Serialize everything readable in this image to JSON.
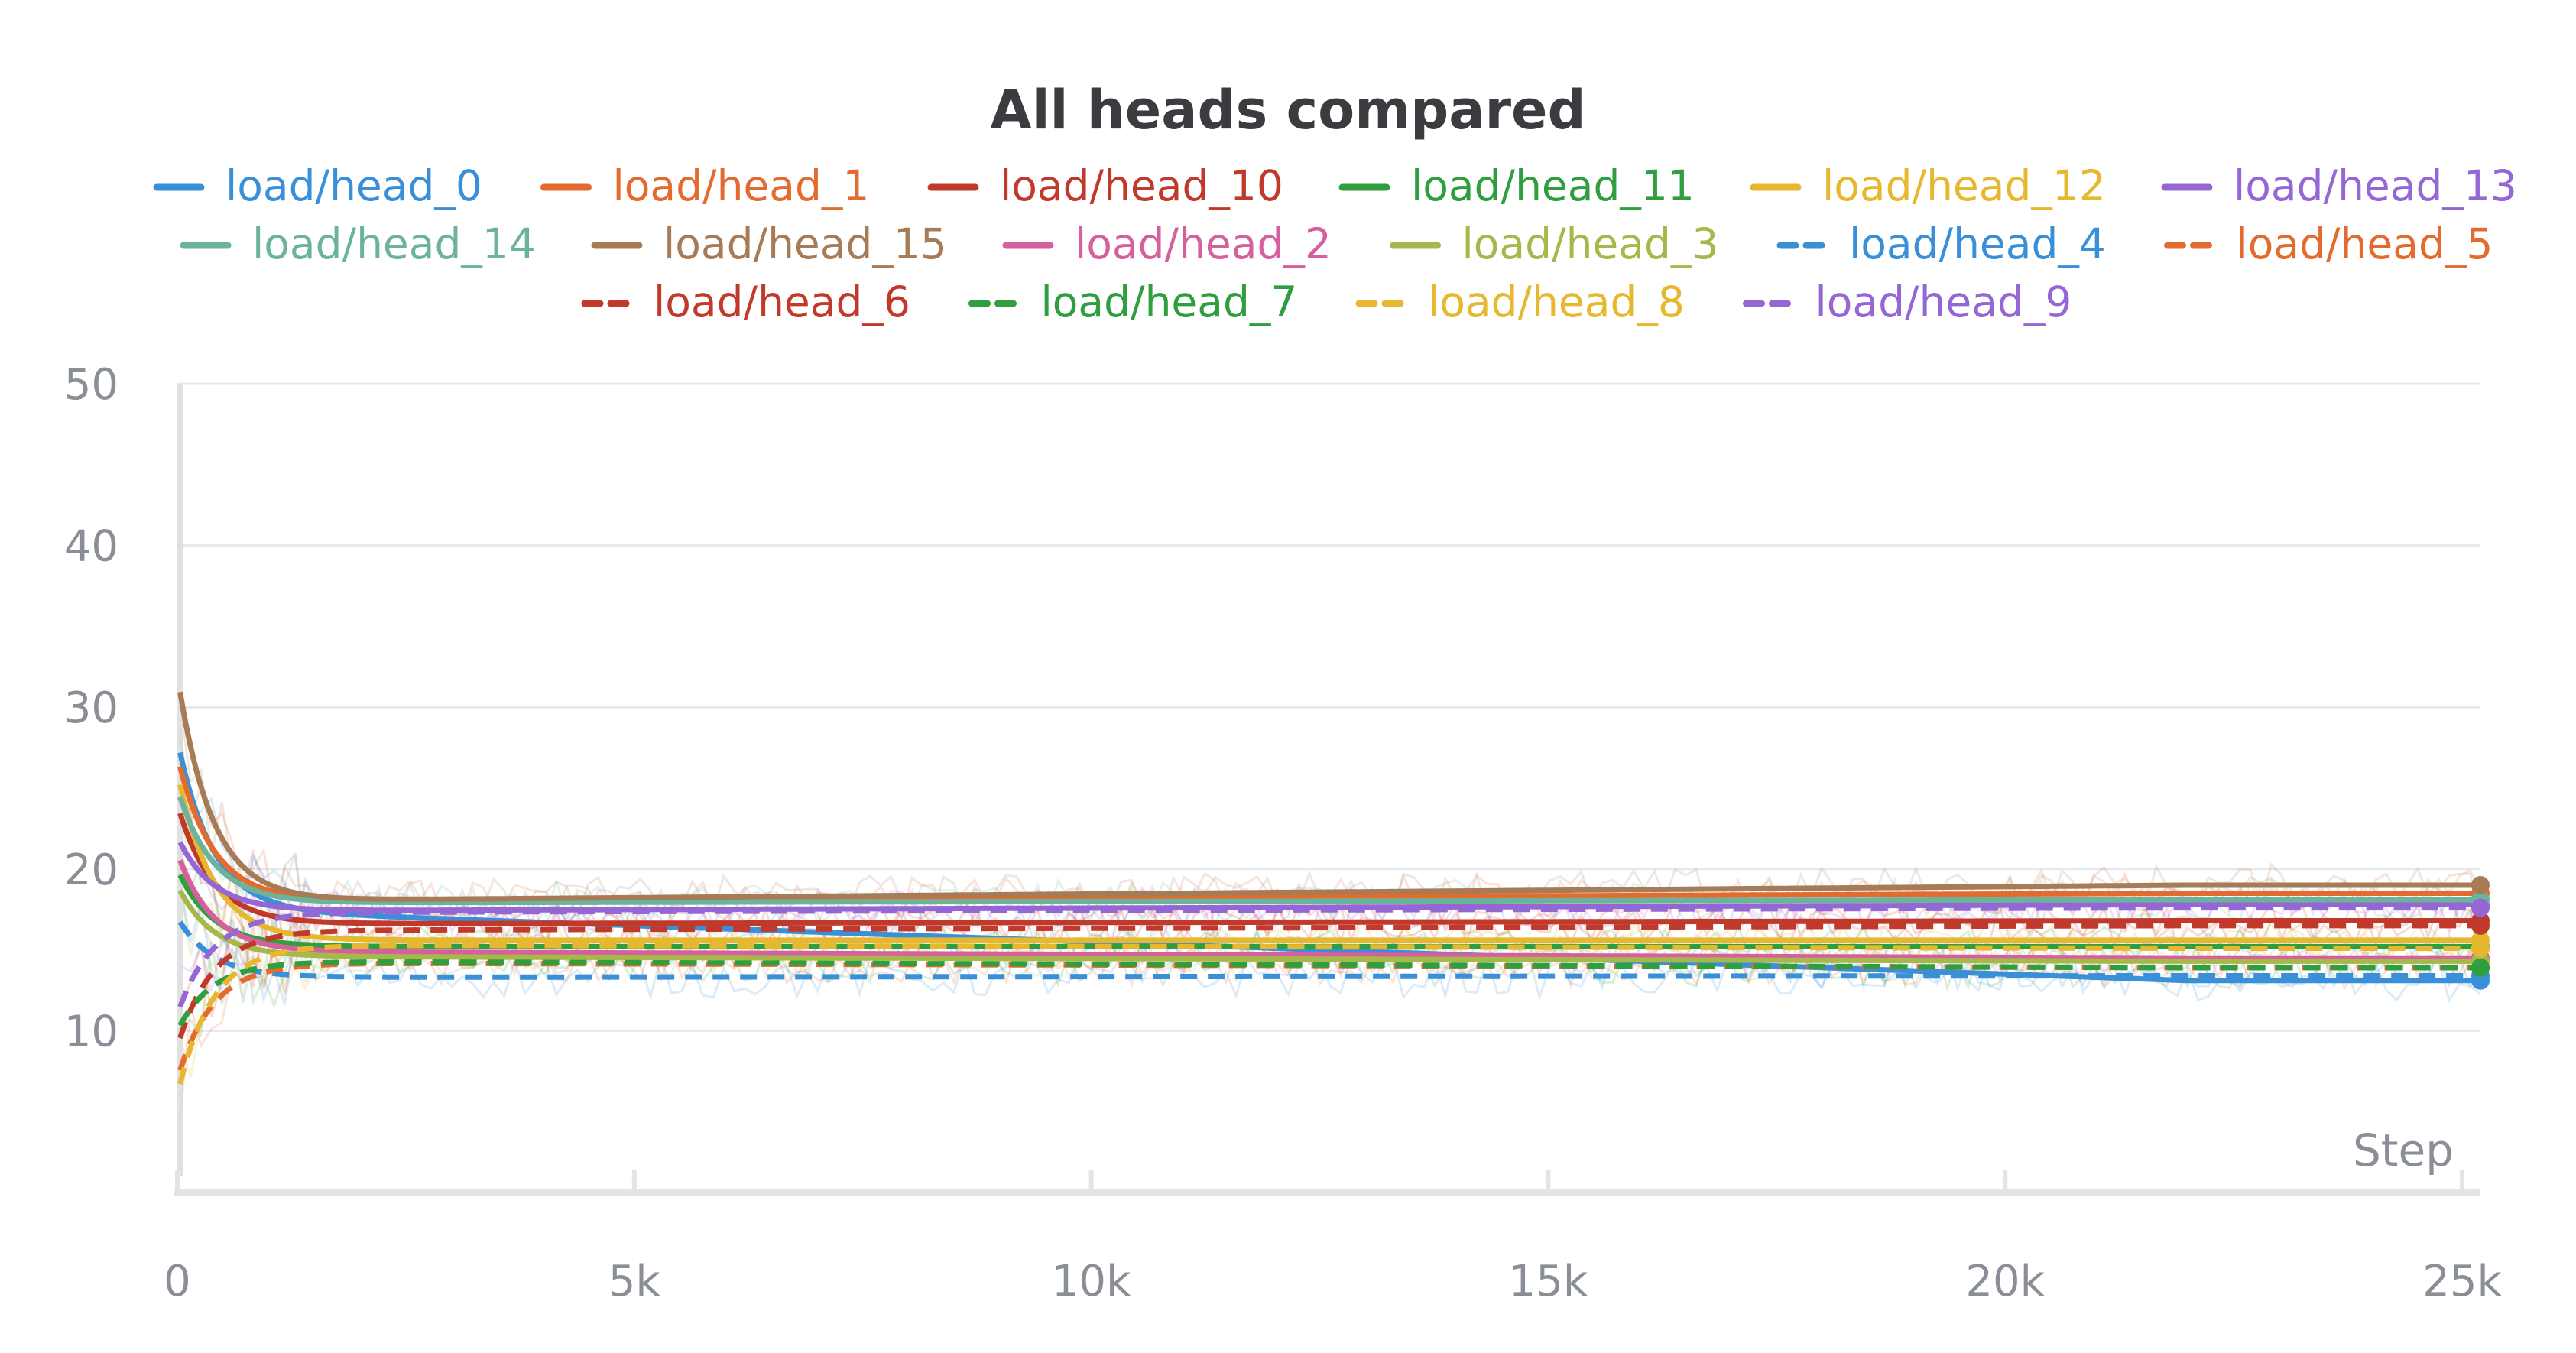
{
  "chart_data": {
    "type": "line",
    "title": "All heads compared",
    "xlabel": "Step",
    "ylabel": "",
    "xlim": [
      0,
      25200
    ],
    "ylim": [
      0,
      50
    ],
    "grid": true,
    "legend_position": "top",
    "x_ticks": [
      {
        "value": 0,
        "label": "0"
      },
      {
        "value": 5000,
        "label": "5k"
      },
      {
        "value": 10000,
        "label": "10k"
      },
      {
        "value": 15000,
        "label": "15k"
      },
      {
        "value": 20000,
        "label": "20k"
      },
      {
        "value": 25000,
        "label": "25k"
      }
    ],
    "y_ticks": [
      {
        "value": 10,
        "label": "10"
      },
      {
        "value": 20,
        "label": "20"
      },
      {
        "value": 30,
        "label": "30"
      },
      {
        "value": 40,
        "label": "40"
      },
      {
        "value": 50,
        "label": "50"
      }
    ],
    "series": [
      {
        "name": "load/head_0",
        "color": "#3a8fd9",
        "dash": false,
        "start": 28,
        "settle": 17.5,
        "end": 13.1
      },
      {
        "name": "load/head_1",
        "color": "#e36b2e",
        "dash": false,
        "start": 27,
        "settle": 18.0,
        "end": 18.5
      },
      {
        "name": "load/head_10",
        "color": "#c0392b",
        "dash": false,
        "start": 24,
        "settle": 16.6,
        "end": 16.8
      },
      {
        "name": "load/head_11",
        "color": "#2f9e3f",
        "dash": false,
        "start": 20,
        "settle": 15.2,
        "end": 15.2
      },
      {
        "name": "load/head_12",
        "color": "#e6b830",
        "dash": false,
        "start": 26,
        "settle": 15.6,
        "end": 15.6
      },
      {
        "name": "load/head_13",
        "color": "#9467d4",
        "dash": false,
        "start": 22,
        "settle": 17.4,
        "end": 17.8
      },
      {
        "name": "load/head_14",
        "color": "#6bb39a",
        "dash": false,
        "start": 25,
        "settle": 17.9,
        "end": 18.1
      },
      {
        "name": "load/head_15",
        "color": "#a87b57",
        "dash": false,
        "start": 32,
        "settle": 18.0,
        "end": 19.0
      },
      {
        "name": "load/head_2",
        "color": "#d65f9d",
        "dash": false,
        "start": 21,
        "settle": 14.9,
        "end": 14.5
      },
      {
        "name": "load/head_3",
        "color": "#a6b84a",
        "dash": false,
        "start": 19,
        "settle": 14.6,
        "end": 14.3
      },
      {
        "name": "load/head_4",
        "color": "#3a8fd9",
        "dash": true,
        "start": 17,
        "settle": 13.3,
        "end": 13.4
      },
      {
        "name": "load/head_5",
        "color": "#e36b2e",
        "dash": true,
        "start": 7,
        "settle": 14.2,
        "end": 13.9
      },
      {
        "name": "load/head_6",
        "color": "#c0392b",
        "dash": true,
        "start": 9,
        "settle": 16.2,
        "end": 16.5
      },
      {
        "name": "load/head_7",
        "color": "#2f9e3f",
        "dash": true,
        "start": 10,
        "settle": 14.3,
        "end": 13.9
      },
      {
        "name": "load/head_8",
        "color": "#e6b830",
        "dash": true,
        "start": 6,
        "settle": 15.3,
        "end": 15.1
      },
      {
        "name": "load/head_9",
        "color": "#9467d4",
        "dash": true,
        "start": 11,
        "settle": 17.3,
        "end": 17.6
      }
    ]
  }
}
